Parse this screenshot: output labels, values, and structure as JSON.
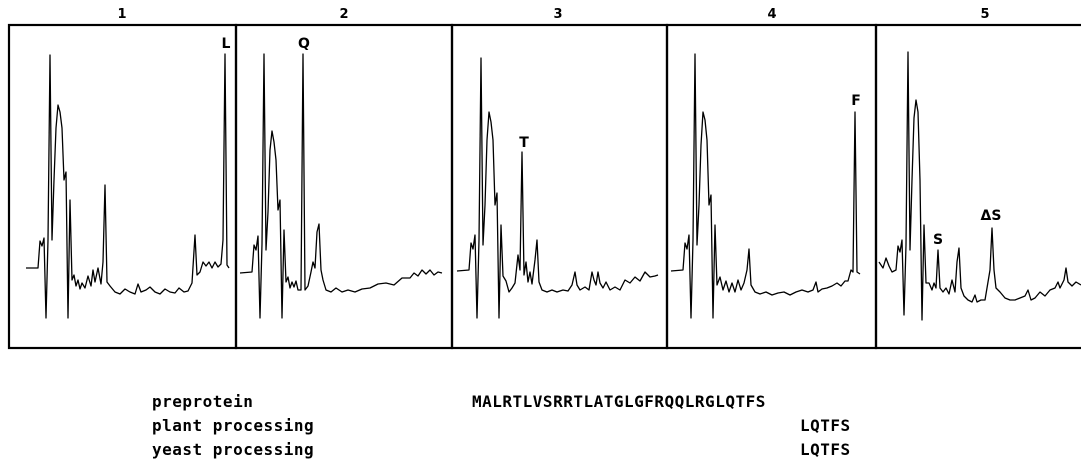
{
  "chart_data": {
    "type": "line",
    "panels": [
      {
        "number": "1",
        "labels": [
          {
            "text": "L"
          }
        ]
      },
      {
        "number": "2",
        "labels": [
          {
            "text": "Q"
          }
        ]
      },
      {
        "number": "3",
        "labels": [
          {
            "text": "T"
          }
        ]
      },
      {
        "number": "4",
        "labels": [
          {
            "text": "F"
          }
        ]
      },
      {
        "number": "5",
        "labels": [
          {
            "text": "S"
          },
          {
            "text": "ΔS"
          }
        ]
      }
    ]
  },
  "sequences": [
    {
      "name": "preprotein",
      "value": "MALRTLVSRRTLATGLGFRQQLRGLQTFS"
    },
    {
      "name": "plant processing",
      "value": "LQTFS"
    },
    {
      "name": "yeast processing",
      "value": "LQTFS"
    }
  ]
}
